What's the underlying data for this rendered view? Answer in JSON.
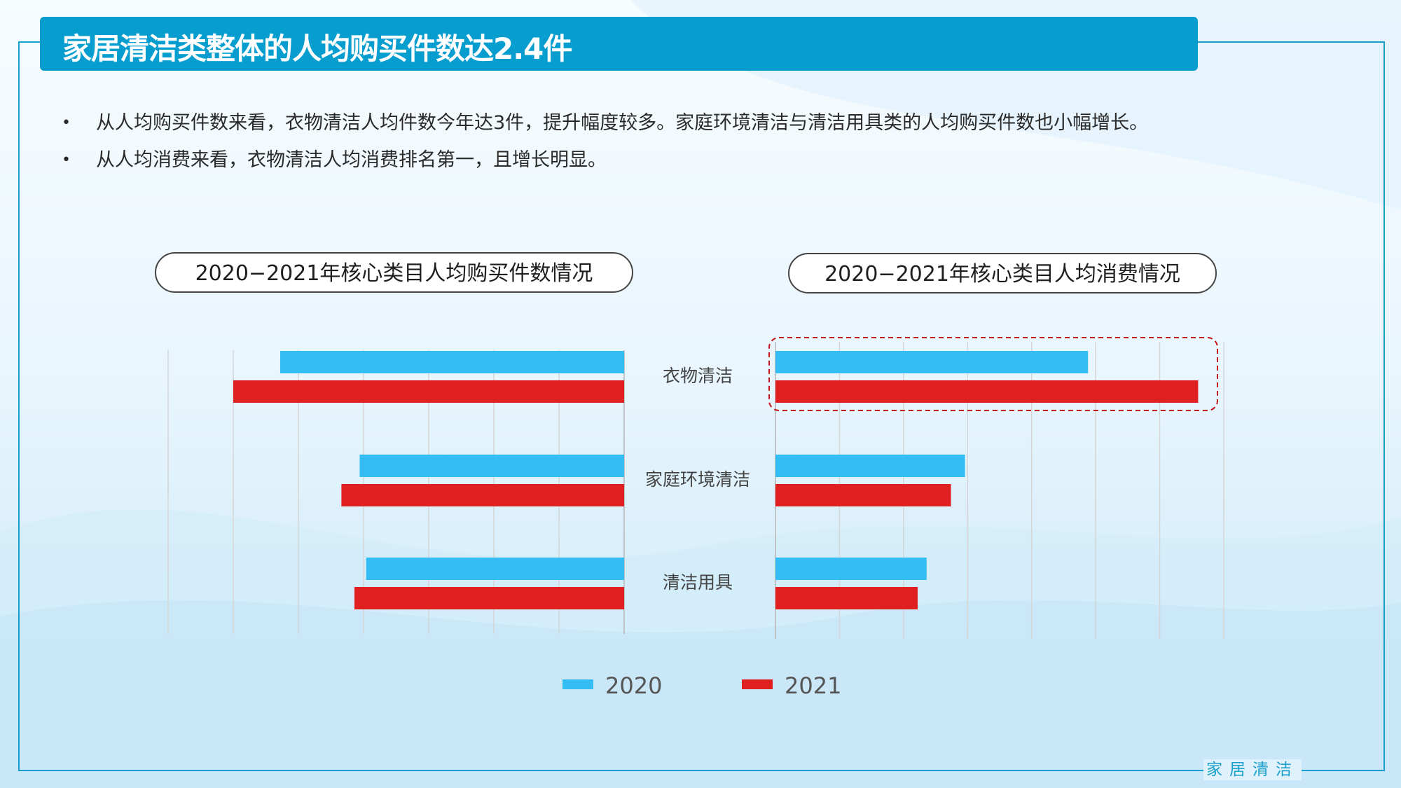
{
  "header": {
    "title": "家居清洁类整体的人均购买件数达2.4件"
  },
  "bullets": [
    {
      "dot": "•",
      "text": "从人均购买件数来看，衣物清洁人均件数今年达3件，提升幅度较多。家庭环境清洁与清洁用具类的人均购买件数也小幅增长。"
    },
    {
      "dot": "•",
      "text": "从人均消费来看，衣物清洁人均消费排名第一，且增长明显。"
    }
  ],
  "footer": {
    "brand": "家居清洁"
  },
  "colors": {
    "accent": "#079ecf",
    "series_2020": "#33bdf2",
    "series_2021": "#e02020"
  },
  "chart_data": [
    {
      "type": "bar",
      "title": "2020−2021年核心类目人均购买件数情况",
      "orientation": "horizontal-reversed",
      "categories": [
        "衣物清洁",
        "家庭环境清洁",
        "清洁用具"
      ],
      "series": [
        {
          "name": "2020",
          "values": [
            2.64,
            2.03,
            1.98
          ]
        },
        {
          "name": "2021",
          "values": [
            3.0,
            2.17,
            2.07
          ]
        }
      ],
      "xlim": [
        0,
        3.5
      ],
      "grid": true,
      "legend": "bottom"
    },
    {
      "type": "bar",
      "title": "2020−2021年核心类目人均消费情况",
      "orientation": "horizontal",
      "categories": [
        "衣物清洁",
        "家庭环境清洁",
        "清洁用具"
      ],
      "series": [
        {
          "name": "2020",
          "values": [
            244,
            148,
            118
          ]
        },
        {
          "name": "2021",
          "values": [
            330,
            137,
            111
          ]
        }
      ],
      "xlim": [
        0,
        350
      ],
      "grid": true,
      "highlight_category": "衣物清洁",
      "legend": "bottom"
    }
  ]
}
